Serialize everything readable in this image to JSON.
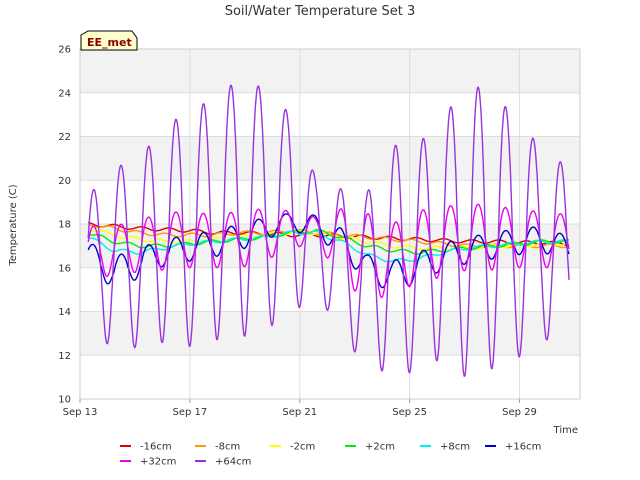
{
  "chart_data": {
    "type": "line",
    "title": "Soil/Water Temperature Set 3",
    "xlabel": "Time",
    "ylabel": "Temperature (C)",
    "badge": "EE_met",
    "ylim": [
      10,
      26
    ],
    "yticks": [
      10,
      12,
      14,
      16,
      18,
      20,
      22,
      24,
      26
    ],
    "xlim": [
      "Sep 13",
      "Oct 2"
    ],
    "xticks": [
      "Sep 13",
      "Sep 17",
      "Sep 21",
      "Sep 25",
      "Sep 29"
    ],
    "x_days_span": 18.2,
    "grid": true,
    "legend_position": "bottom",
    "series": [
      {
        "name": "-16cm",
        "color": "#dd0000",
        "x_start": 0.3,
        "x_end": 17.8,
        "values": [
          18.0,
          17.9,
          17.8,
          17.75,
          17.7,
          17.6,
          17.6,
          17.55,
          17.5,
          17.5,
          17.45,
          17.4,
          17.35,
          17.3,
          17.25,
          17.2,
          17.2,
          17.15,
          17.15,
          17.1
        ]
      },
      {
        "name": "-8cm",
        "color": "#ff9900",
        "x_start": 0.3,
        "x_end": 17.8,
        "values": [
          18.0,
          17.8,
          17.6,
          17.5,
          17.5,
          17.5,
          17.6,
          17.6,
          17.7,
          17.6,
          17.5,
          17.4,
          17.3,
          17.2,
          17.1,
          17.0,
          17.0,
          17.0,
          17.0,
          17.0
        ]
      },
      {
        "name": "-2cm",
        "color": "#ffff00",
        "x_start": 0.3,
        "x_end": 17.8,
        "values": [
          17.8,
          17.5,
          17.3,
          17.2,
          17.2,
          17.3,
          17.4,
          17.5,
          17.6,
          17.6,
          17.4,
          17.2,
          17.0,
          16.9,
          16.9,
          16.9,
          17.0,
          17.0,
          17.1,
          17.1
        ]
      },
      {
        "name": "+2cm",
        "color": "#00ee00",
        "x_start": 0.3,
        "x_end": 17.8,
        "values": [
          17.6,
          17.2,
          17.0,
          17.0,
          17.1,
          17.2,
          17.3,
          17.4,
          17.6,
          17.7,
          17.4,
          17.0,
          16.8,
          16.7,
          16.8,
          16.9,
          17.0,
          17.1,
          17.2,
          17.2
        ]
      },
      {
        "name": "+8cm",
        "color": "#00eeee",
        "x_start": 0.3,
        "x_end": 17.8,
        "values": [
          17.4,
          16.8,
          16.7,
          16.9,
          17.1,
          17.2,
          17.3,
          17.4,
          17.6,
          17.6,
          17.2,
          16.6,
          16.3,
          16.4,
          16.7,
          16.9,
          17.0,
          17.1,
          17.2,
          17.2
        ]
      },
      {
        "name": "+16cm",
        "color": "#0000cc",
        "x_start": 0.3,
        "x_end": 17.8,
        "amplitude_pattern": "diurnal",
        "values": [
          16.5,
          15.8,
          16.2,
          16.7,
          16.9,
          17.1,
          17.4,
          17.8,
          18.1,
          17.9,
          17.2,
          16.0,
          15.6,
          16.0,
          16.5,
          16.8,
          17.0,
          17.2,
          17.3,
          16.8
        ],
        "daily_amplitude": [
          0.7,
          0.7,
          0.7,
          0.6,
          0.6,
          0.6,
          0.6,
          0.5,
          0.4,
          0.5,
          0.6,
          0.6,
          0.7,
          0.7,
          0.6,
          0.6,
          0.6,
          0.6,
          0.6,
          0.6
        ]
      },
      {
        "name": "+32cm",
        "color": "#ee00ee",
        "x_start": 0.3,
        "x_end": 17.8,
        "amplitude_pattern": "diurnal",
        "values": [
          16.6,
          16.8,
          17.0,
          17.2,
          17.3,
          17.2,
          17.3,
          17.5,
          17.8,
          17.6,
          17.3,
          16.3,
          16.5,
          16.9,
          17.2,
          17.4,
          17.4,
          17.3,
          17.3,
          17.2
        ],
        "daily_amplitude": [
          1.3,
          1.1,
          1.2,
          1.3,
          1.3,
          1.2,
          1.3,
          1.2,
          0.8,
          0.7,
          1.4,
          2.2,
          1.5,
          1.7,
          1.6,
          1.5,
          1.5,
          1.3,
          1.3,
          1.2
        ]
      },
      {
        "name": "+64cm",
        "color": "#9933dd",
        "x_start": 0.3,
        "x_end": 17.8,
        "amplitude_pattern": "diurnal",
        "values": [
          15.8,
          16.6,
          16.6,
          17.6,
          17.7,
          18.3,
          18.7,
          18.7,
          18.4,
          17.5,
          16.3,
          15.4,
          16.4,
          16.4,
          17.4,
          17.6,
          17.8,
          17.2,
          17.1,
          16.6
        ],
        "daily_amplitude": [
          3.5,
          4.0,
          4.3,
          5.0,
          5.3,
          5.6,
          5.9,
          5.5,
          4.6,
          2.6,
          3.3,
          4.0,
          5.2,
          5.2,
          5.5,
          6.7,
          6.4,
          5.3,
          4.4,
          3.9
        ]
      }
    ]
  }
}
